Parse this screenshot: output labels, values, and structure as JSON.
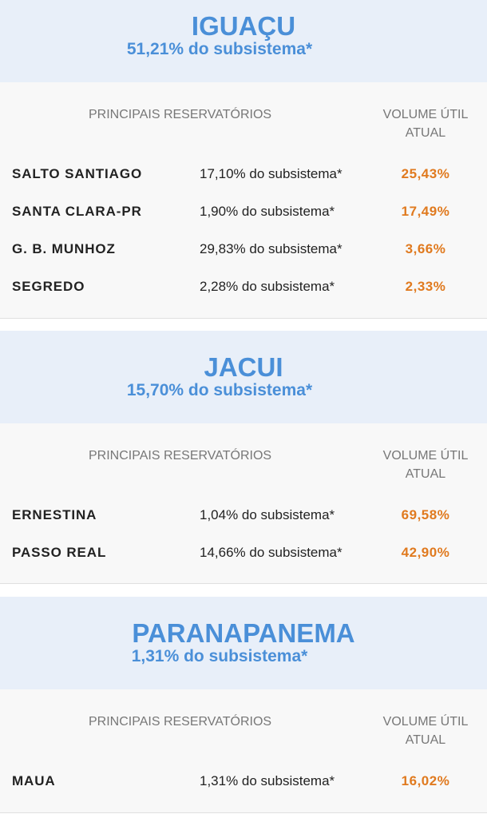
{
  "column_headers": {
    "reservoirs": "PRINCIPAIS RESERVATÓRIOS",
    "volume_line1": "VOLUME ÚTIL",
    "volume_line2": "ATUAL"
  },
  "subsystems": [
    {
      "name": "IGUAÇU",
      "share": "51,21% do subsistema*",
      "reservoirs": [
        {
          "name": "SALTO SANTIAGO",
          "share": "17,10% do subsistema*",
          "volume": "25,43%"
        },
        {
          "name": "SANTA CLARA-PR",
          "share": "1,90% do subsistema*",
          "volume": "17,49%"
        },
        {
          "name": "G. B. MUNHOZ",
          "share": "29,83% do subsistema*",
          "volume": "3,66%"
        },
        {
          "name": "SEGREDO",
          "share": "2,28% do subsistema*",
          "volume": "2,33%"
        }
      ]
    },
    {
      "name": "JACUI",
      "share": "15,70% do subsistema*",
      "reservoirs": [
        {
          "name": "ERNESTINA",
          "share": "1,04% do subsistema*",
          "volume": "69,58%"
        },
        {
          "name": "PASSO REAL",
          "share": "14,66% do subsistema*",
          "volume": "42,90%"
        }
      ]
    },
    {
      "name": "PARANAPANEMA",
      "share": "1,31% do subsistema*",
      "reservoirs": [
        {
          "name": "MAUA",
          "share": "1,31% do subsistema*",
          "volume": "16,02%"
        }
      ]
    }
  ],
  "colors": {
    "header_bg": "#e8eff9",
    "title_blue": "#4a8fd8",
    "volume_orange": "#e07a1f",
    "body_bg": "#f8f8f8"
  }
}
